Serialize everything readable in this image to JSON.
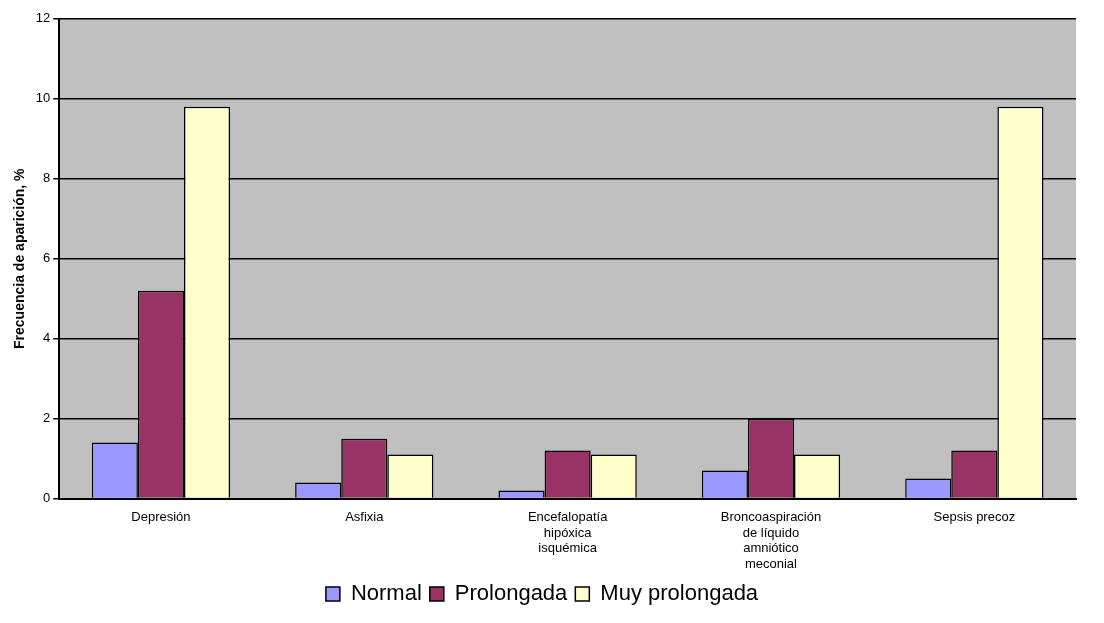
{
  "chart_data": {
    "type": "bar",
    "ylabel": "Frecuencia de aparición, %",
    "categories": [
      "Depresión",
      "Asfixia",
      "Encefalopatía hipóxica isquémica",
      "Broncoaspiración de líquido amniótico meconial",
      "Sepsis precoz"
    ],
    "series": [
      {
        "name": "Normal",
        "color": "#9999ff",
        "values": [
          1.4,
          0.4,
          0.2,
          0.7,
          0.5
        ]
      },
      {
        "name": "Prolongada",
        "color": "#993366",
        "values": [
          5.2,
          1.5,
          1.2,
          2.0,
          1.2
        ]
      },
      {
        "name": "Muy prolongada",
        "color": "#ffffcc",
        "values": [
          9.8,
          1.1,
          1.1,
          1.1,
          9.8
        ]
      }
    ],
    "ylim": [
      0,
      12
    ],
    "yticks": [
      0,
      2,
      4,
      6,
      8,
      10,
      12
    ],
    "grid": "y",
    "legend": "bottom"
  }
}
